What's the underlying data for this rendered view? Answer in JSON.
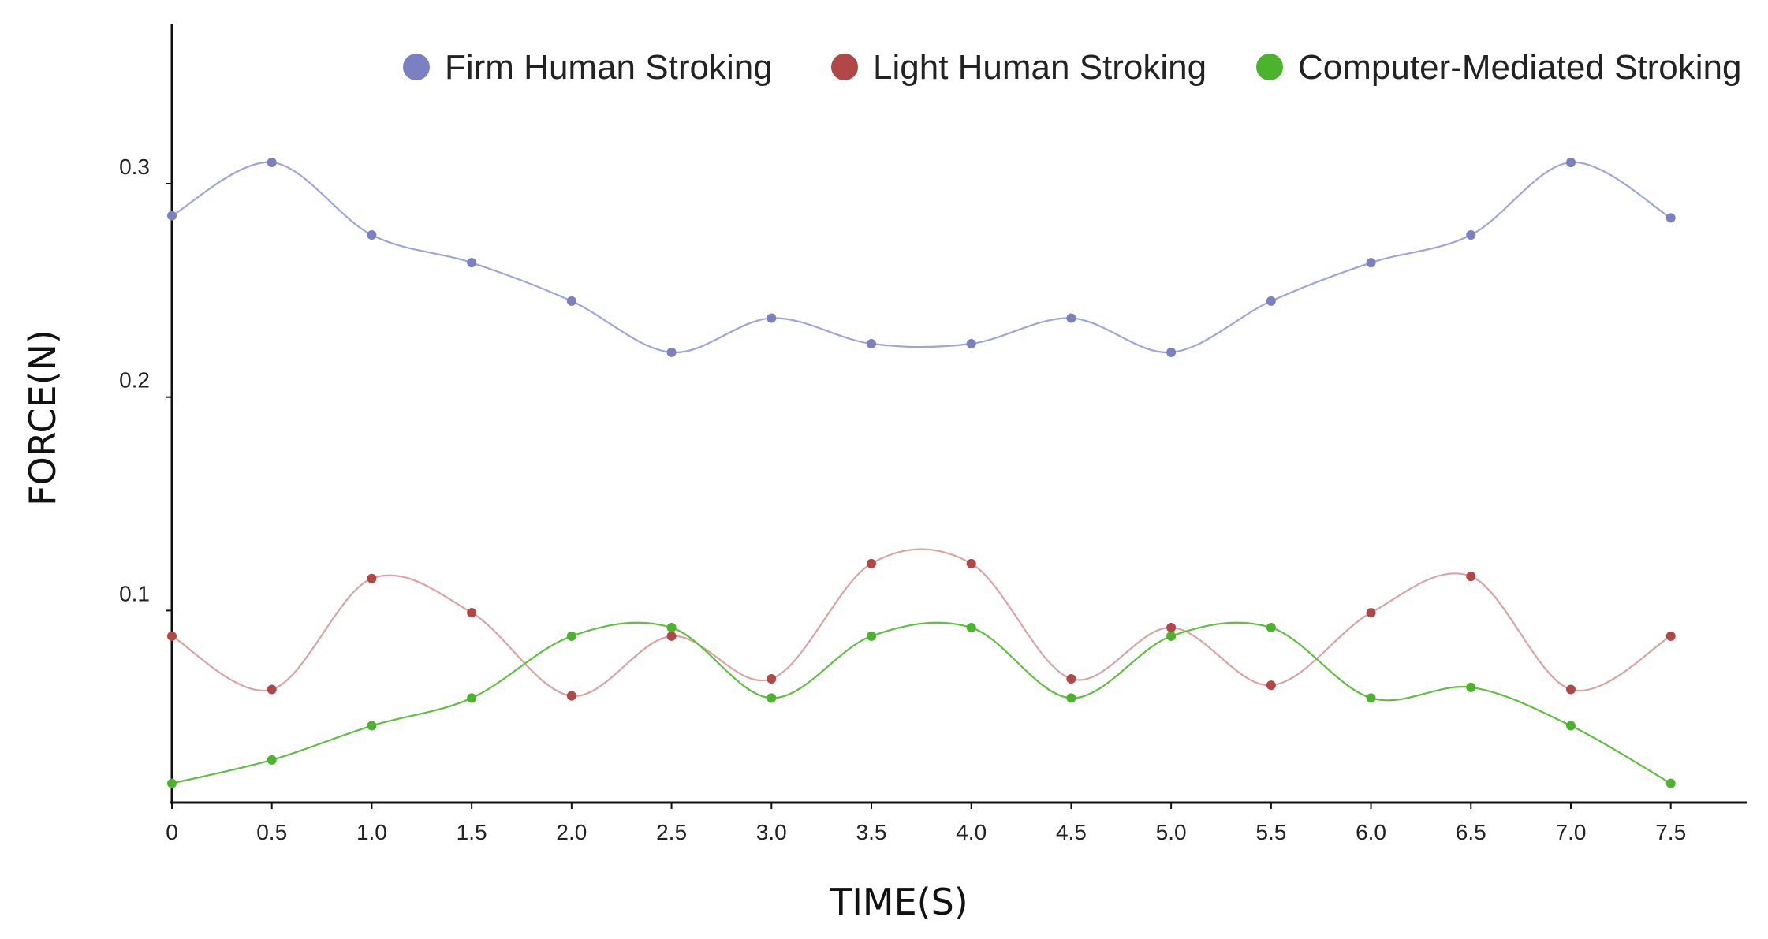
{
  "chart_data": {
    "type": "line",
    "xlabel": "TIME(S)",
    "ylabel": "FORCE(N)",
    "x": [
      0,
      0.5,
      1.0,
      1.5,
      2.0,
      2.5,
      3.0,
      3.5,
      4.0,
      4.5,
      5.0,
      5.5,
      6.0,
      6.5,
      7.0,
      7.5
    ],
    "x_tick_labels": [
      "0",
      "0.5",
      "1.0",
      "1.5",
      "2.0",
      "2.5",
      "3.0",
      "3.5",
      "4.0",
      "4.5",
      "5.0",
      "5.5",
      "6.0",
      "6.5",
      "7.0",
      "7.5"
    ],
    "y_ticks": [
      0.1,
      0.2,
      0.3
    ],
    "y_tick_labels": [
      "0.1",
      "0.2",
      "0.3"
    ],
    "xlim": [
      0,
      7.88
    ],
    "ylim": [
      0.01,
      0.375
    ],
    "grid": false,
    "legend_position": "top-right",
    "smooth": true,
    "series": [
      {
        "name": "Firm Human Stroking",
        "color": "#7a80c0",
        "line_color": "#9fa4dc",
        "values": [
          0.285,
          0.31,
          0.276,
          0.263,
          0.245,
          0.221,
          0.237,
          0.225,
          0.225,
          0.237,
          0.221,
          0.245,
          0.263,
          0.276,
          0.31,
          0.284
        ]
      },
      {
        "name": "Light Human Stroking",
        "color": "#b04848",
        "line_color": "#dba3a3",
        "values": [
          0.088,
          0.063,
          0.115,
          0.099,
          0.06,
          0.088,
          0.068,
          0.122,
          0.122,
          0.068,
          0.092,
          0.065,
          0.099,
          0.116,
          0.063,
          0.088
        ]
      },
      {
        "name": "Computer-Mediated Stroking",
        "color": "#4cb32d",
        "line_color": "#5fbf3f",
        "values": [
          0.019,
          0.03,
          0.046,
          0.059,
          0.088,
          0.092,
          0.059,
          0.088,
          0.092,
          0.059,
          0.088,
          0.092,
          0.059,
          0.064,
          0.046,
          0.019
        ]
      }
    ]
  }
}
